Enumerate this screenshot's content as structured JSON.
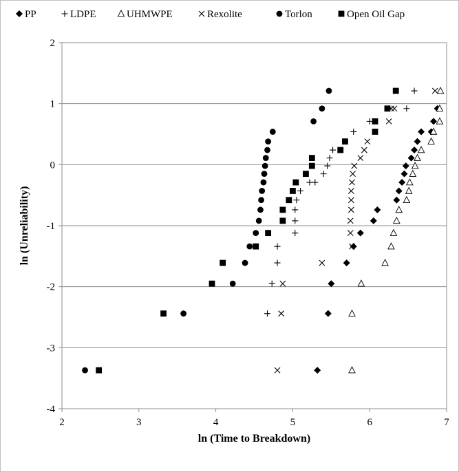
{
  "chart_data": {
    "type": "scatter",
    "title": "",
    "xlabel": "ln (Time to Breakdown)",
    "ylabel": "ln (Unreliability)",
    "xlim": [
      2,
      7
    ],
    "ylim": [
      -4,
      2
    ],
    "xticks": [
      "2",
      "3",
      "4",
      "5",
      "6",
      "7"
    ],
    "yticks": [
      "-4",
      "-3",
      "-2",
      "-1",
      "0",
      "1",
      "2"
    ],
    "grid": "horizontal",
    "legend_position": "top",
    "series": [
      {
        "name": "PP",
        "marker": "diamond",
        "points": [
          [
            5.32,
            -3.37
          ],
          [
            5.46,
            -2.44
          ],
          [
            5.5,
            -1.95
          ],
          [
            5.7,
            -1.61
          ],
          [
            5.79,
            -1.34
          ],
          [
            5.88,
            -1.12
          ],
          [
            6.05,
            -0.92
          ],
          [
            6.1,
            -0.74
          ],
          [
            6.35,
            -0.58
          ],
          [
            6.38,
            -0.43
          ],
          [
            6.42,
            -0.29
          ],
          [
            6.45,
            -0.15
          ],
          [
            6.47,
            -0.02
          ],
          [
            6.54,
            0.11
          ],
          [
            6.58,
            0.24
          ],
          [
            6.62,
            0.38
          ],
          [
            6.67,
            0.54
          ],
          [
            6.8,
            0.54
          ],
          [
            6.83,
            0.71
          ],
          [
            6.88,
            0.92
          ]
        ]
      },
      {
        "name": "LDPE",
        "marker": "plus",
        "points": [
          [
            4.67,
            -2.44
          ],
          [
            4.73,
            -1.95
          ],
          [
            4.8,
            -1.61
          ],
          [
            4.8,
            -1.34
          ],
          [
            5.03,
            -1.12
          ],
          [
            5.03,
            -0.92
          ],
          [
            5.03,
            -0.74
          ],
          [
            5.05,
            -0.58
          ],
          [
            5.1,
            -0.43
          ],
          [
            5.22,
            -0.29
          ],
          [
            5.29,
            -0.29
          ],
          [
            5.4,
            -0.15
          ],
          [
            5.45,
            -0.02
          ],
          [
            5.48,
            0.11
          ],
          [
            5.52,
            0.24
          ],
          [
            5.68,
            0.38
          ],
          [
            5.79,
            0.54
          ],
          [
            6,
            0.71
          ],
          [
            6.25,
            0.92
          ],
          [
            6.48,
            0.92
          ],
          [
            6.58,
            1.21
          ]
        ]
      },
      {
        "name": "UHMWPE",
        "marker": "triangle",
        "points": [
          [
            5.77,
            -3.37
          ],
          [
            5.77,
            -2.44
          ],
          [
            5.89,
            -1.95
          ],
          [
            6.2,
            -1.61
          ],
          [
            6.28,
            -1.34
          ],
          [
            6.31,
            -1.12
          ],
          [
            6.35,
            -0.92
          ],
          [
            6.38,
            -0.74
          ],
          [
            6.48,
            -0.58
          ],
          [
            6.51,
            -0.43
          ],
          [
            6.52,
            -0.29
          ],
          [
            6.56,
            -0.15
          ],
          [
            6.59,
            -0.02
          ],
          [
            6.62,
            0.11
          ],
          [
            6.67,
            0.24
          ],
          [
            6.8,
            0.38
          ],
          [
            6.83,
            0.54
          ],
          [
            6.91,
            0.71
          ],
          [
            6.91,
            0.92
          ],
          [
            6.92,
            1.21
          ]
        ]
      },
      {
        "name": "Rexolite",
        "marker": "cross",
        "points": [
          [
            4.8,
            -3.37
          ],
          [
            4.85,
            -2.44
          ],
          [
            4.87,
            -1.95
          ],
          [
            5.38,
            -1.61
          ],
          [
            5.77,
            -1.34
          ],
          [
            5.75,
            -1.12
          ],
          [
            5.75,
            -0.92
          ],
          [
            5.76,
            -0.74
          ],
          [
            5.76,
            -0.58
          ],
          [
            5.76,
            -0.43
          ],
          [
            5.77,
            -0.29
          ],
          [
            5.78,
            -0.15
          ],
          [
            5.8,
            -0.02
          ],
          [
            5.88,
            0.11
          ],
          [
            5.93,
            0.24
          ],
          [
            5.97,
            0.38
          ],
          [
            6.25,
            0.71
          ],
          [
            6.28,
            0.92
          ],
          [
            6.32,
            0.92
          ],
          [
            6.85,
            1.21
          ]
        ]
      },
      {
        "name": "Torlon",
        "marker": "circle",
        "points": [
          [
            2.3,
            -3.37
          ],
          [
            3.58,
            -2.44
          ],
          [
            4.22,
            -1.95
          ],
          [
            4.38,
            -1.61
          ],
          [
            4.44,
            -1.34
          ],
          [
            4.52,
            -1.12
          ],
          [
            4.56,
            -0.92
          ],
          [
            4.58,
            -0.74
          ],
          [
            4.59,
            -0.58
          ],
          [
            4.6,
            -0.43
          ],
          [
            4.62,
            -0.29
          ],
          [
            4.63,
            -0.15
          ],
          [
            4.64,
            -0.02
          ],
          [
            4.65,
            0.11
          ],
          [
            4.67,
            0.24
          ],
          [
            4.68,
            0.38
          ],
          [
            4.74,
            0.54
          ],
          [
            5.27,
            0.71
          ],
          [
            5.38,
            0.92
          ],
          [
            5.47,
            1.21
          ]
        ]
      },
      {
        "name": "Open Oil Gap",
        "marker": "square",
        "points": [
          [
            2.48,
            -3.37
          ],
          [
            3.32,
            -2.44
          ],
          [
            3.95,
            -1.95
          ],
          [
            4.09,
            -1.61
          ],
          [
            4.52,
            -1.34
          ],
          [
            4.68,
            -1.12
          ],
          [
            4.87,
            -0.92
          ],
          [
            4.87,
            -0.74
          ],
          [
            4.95,
            -0.58
          ],
          [
            5.0,
            -0.43
          ],
          [
            5.04,
            -0.29
          ],
          [
            5.17,
            -0.15
          ],
          [
            5.25,
            -0.02
          ],
          [
            5.25,
            0.11
          ],
          [
            5.62,
            0.24
          ],
          [
            5.68,
            0.38
          ],
          [
            6.07,
            0.54
          ],
          [
            6.07,
            0.71
          ],
          [
            6.23,
            0.92
          ],
          [
            6.34,
            1.21
          ]
        ]
      }
    ]
  }
}
